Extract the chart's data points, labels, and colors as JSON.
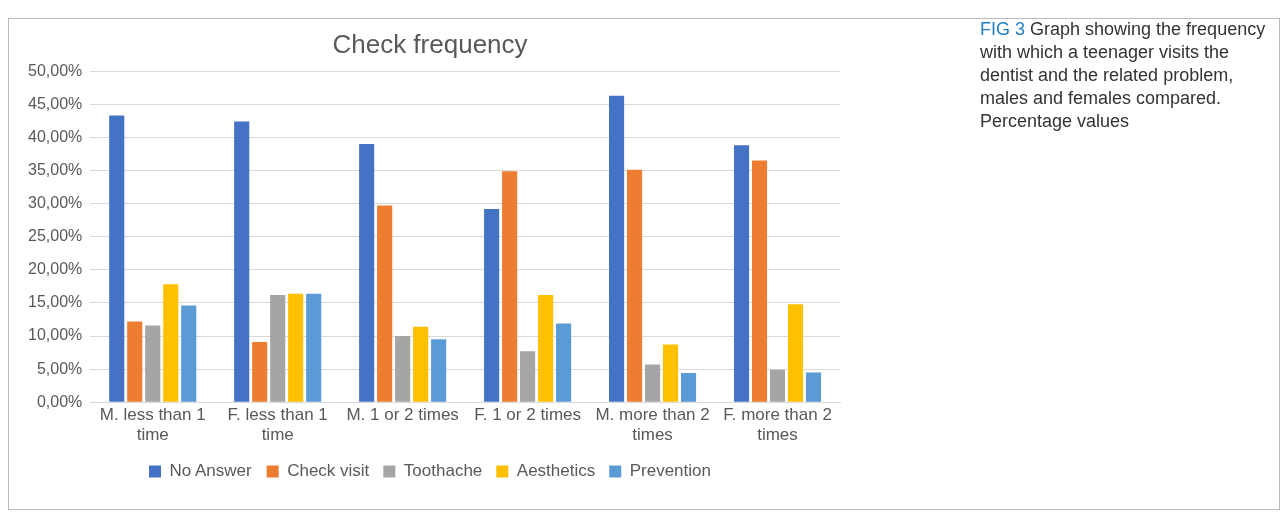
{
  "chart_data": {
    "type": "bar",
    "title": "Check frequency",
    "categories": [
      "M. less than 1 time",
      "F. less than 1 time",
      "M. 1 or 2 times",
      "F. 1 or 2 times",
      "M. more than 2 times",
      "F. more than 2 times"
    ],
    "series": [
      {
        "name": "No Answer",
        "color": "#4472c4",
        "values": [
          43.3,
          42.4,
          39.0,
          29.2,
          46.3,
          38.8
        ]
      },
      {
        "name": "Check visit",
        "color": "#ed7d31",
        "values": [
          12.2,
          9.1,
          29.7,
          34.9,
          35.1,
          36.5
        ]
      },
      {
        "name": "Toothache",
        "color": "#a5a5a5",
        "values": [
          11.6,
          16.2,
          10.0,
          7.7,
          5.7,
          4.9
        ]
      },
      {
        "name": "Aesthetics",
        "color": "#ffc000",
        "values": [
          17.8,
          16.4,
          11.4,
          16.2,
          8.7,
          14.8
        ]
      },
      {
        "name": "Prevention",
        "color": "#5b9bd5",
        "values": [
          14.6,
          16.4,
          9.5,
          11.9,
          4.4,
          4.5
        ]
      }
    ],
    "ylim": [
      0,
      50
    ],
    "yticks": [
      {
        "value": 0,
        "label": "0,00%"
      },
      {
        "value": 5,
        "label": "5,00%"
      },
      {
        "value": 10,
        "label": "10,00%"
      },
      {
        "value": 15,
        "label": "15,00%"
      },
      {
        "value": 20,
        "label": "20,00%"
      },
      {
        "value": 25,
        "label": "25,00%"
      },
      {
        "value": 30,
        "label": "30,00%"
      },
      {
        "value": 35,
        "label": "35,00%"
      },
      {
        "value": 40,
        "label": "40,00%"
      },
      {
        "value": 45,
        "label": "45,00%"
      },
      {
        "value": 50,
        "label": "50,00%"
      }
    ],
    "grid": "y",
    "legend": "bottom",
    "annotations": [
      "FIG 3",
      "Graph showing the frequency with which a teenager visits the dentist and the related problem, males and females compared. Percentage values"
    ]
  }
}
